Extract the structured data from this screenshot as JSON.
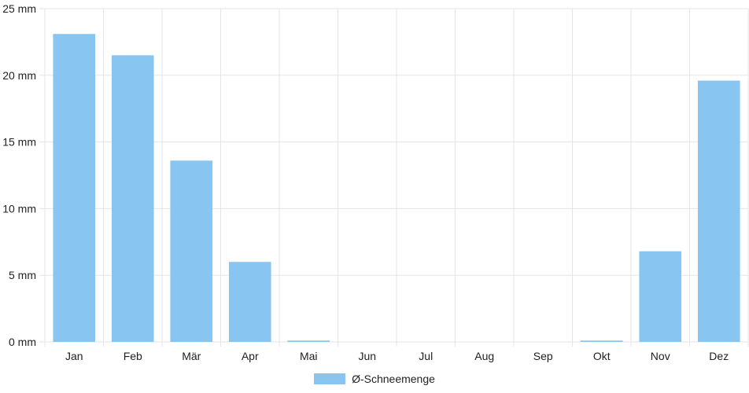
{
  "chart_data": {
    "type": "bar",
    "categories": [
      "Jan",
      "Feb",
      "Mär",
      "Apr",
      "Mai",
      "Jun",
      "Jul",
      "Aug",
      "Sep",
      "Okt",
      "Nov",
      "Dez"
    ],
    "series": [
      {
        "name": "Ø-Schneemenge",
        "values": [
          23.1,
          21.5,
          13.6,
          6.0,
          0.1,
          0,
          0,
          0,
          0,
          0.1,
          6.8,
          19.6
        ]
      }
    ],
    "y_ticks": [
      "0 mm",
      "5 mm",
      "10 mm",
      "15 mm",
      "20 mm",
      "25 mm"
    ],
    "ylim": [
      0,
      25
    ],
    "grid": true,
    "legend_position": "bottom",
    "bar_color": "#88c5f0",
    "grid_color": "#e5e5e5"
  }
}
